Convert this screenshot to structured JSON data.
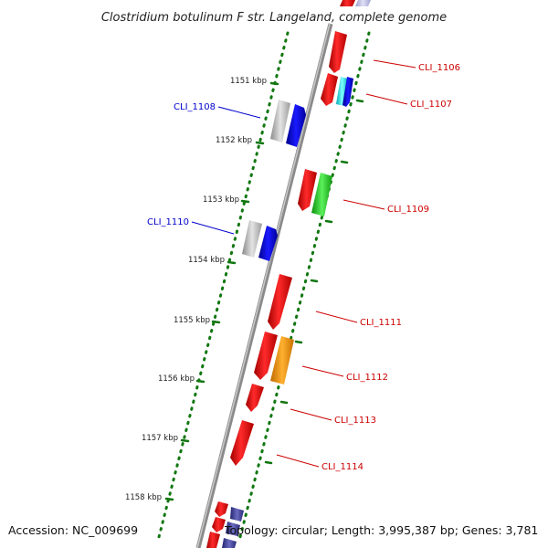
{
  "title": "Clostridium botulinum F str. Langeland, complete genome",
  "footer": {
    "accession": "Accession: NC_009699",
    "topology": "Topology: circular; Length: 3,995,387 bp; Genes: 3,781"
  },
  "kbp_labels": [
    "1151 kbp",
    "1152 kbp",
    "1153 kbp",
    "1154 kbp",
    "1155 kbp",
    "1156 kbp",
    "1157 kbp",
    "1158 kbp"
  ],
  "genes": [
    {
      "name": "CLI_1106",
      "color": "#cc0000"
    },
    {
      "name": "CLI_1107",
      "color": "#cc0000"
    },
    {
      "name": "CLI_1108",
      "color": "#0000cc"
    },
    {
      "name": "CLI_1109",
      "color": "#cc0000"
    },
    {
      "name": "CLI_1110",
      "color": "#0000cc"
    },
    {
      "name": "CLI_1111",
      "color": "#cc0000"
    },
    {
      "name": "CLI_1112",
      "color": "#cc0000"
    },
    {
      "name": "CLI_1113",
      "color": "#cc0000"
    },
    {
      "name": "CLI_1114",
      "color": "#cc0000"
    }
  ],
  "colors": {
    "forward_red": "#ff1010",
    "reverse_blue": "#0000ee",
    "gray": "#bdbdbd",
    "green": "#22cc22",
    "orange": "#ff9900",
    "cyan": "#00e5ee",
    "navy": "#3a3a9a",
    "tick_green": "#007700"
  }
}
